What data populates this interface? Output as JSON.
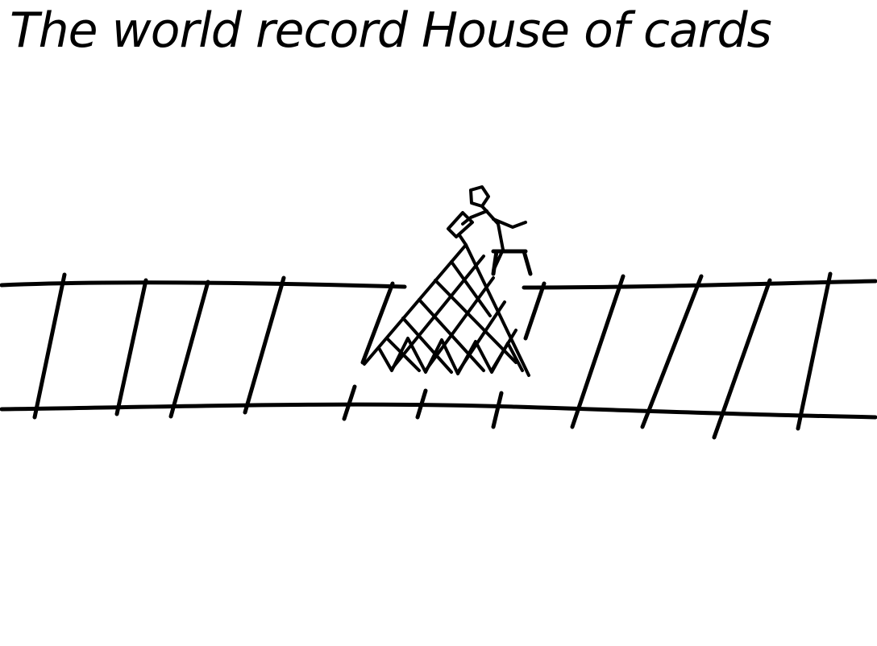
{
  "caption": "The world record House of cards",
  "colors": {
    "ink": "#000000",
    "paper": "#ffffff"
  },
  "scene": {
    "description_items": [
      "railroad-track",
      "card-house-pyramid",
      "stick-figure-on-stool"
    ]
  }
}
